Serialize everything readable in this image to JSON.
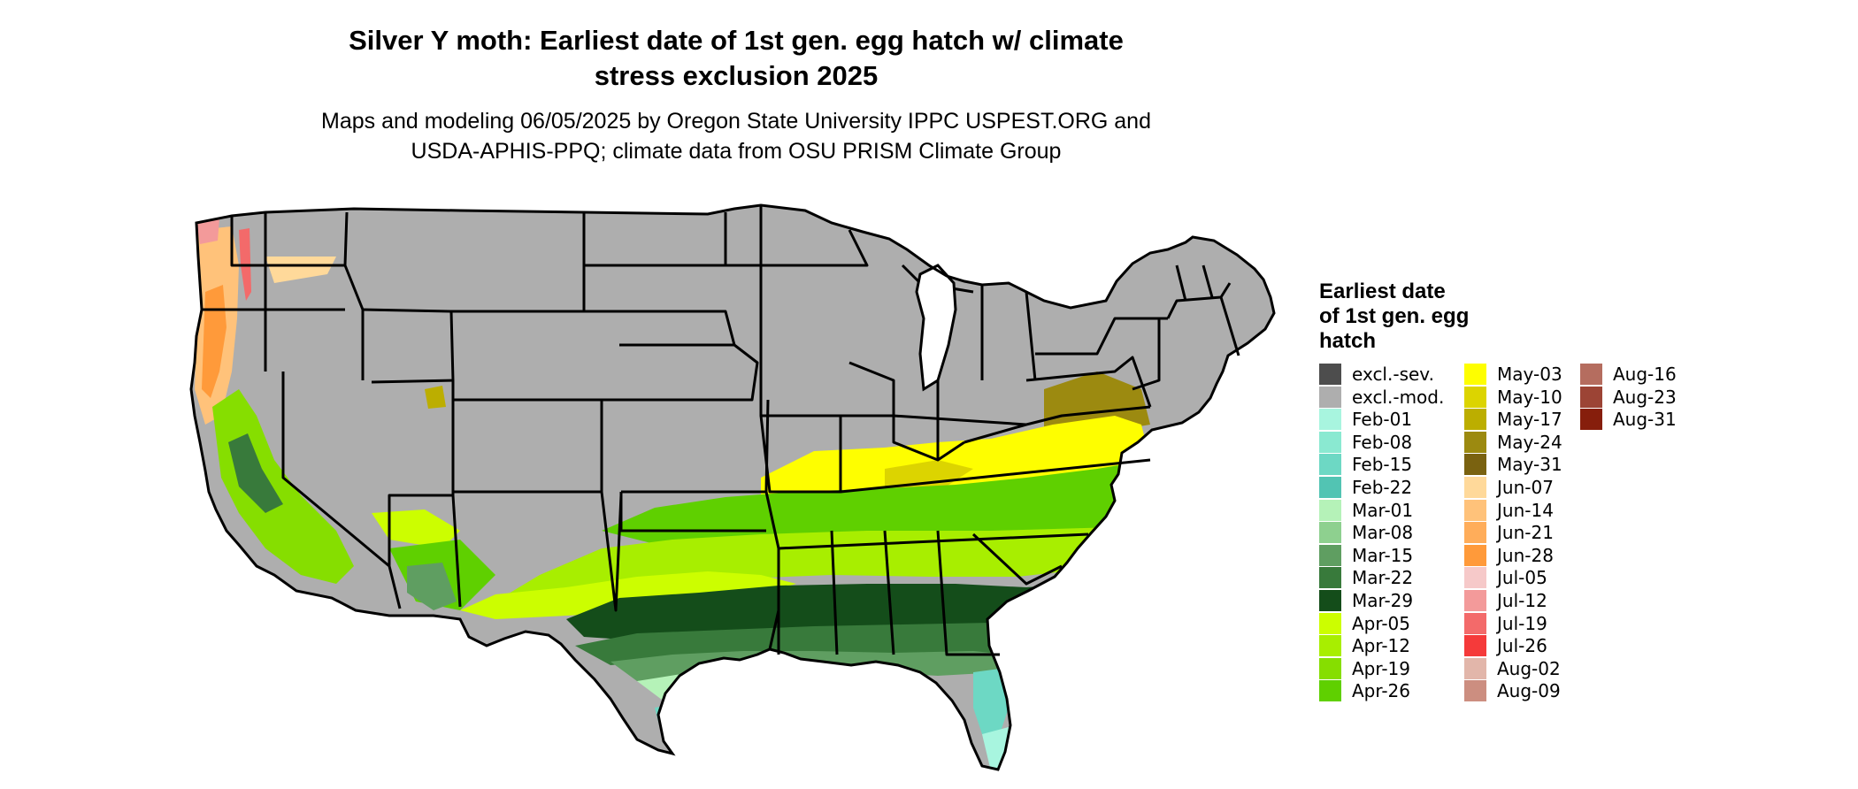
{
  "title": {
    "line1": "Silver Y moth: Earliest date of 1st gen. egg hatch w/ climate",
    "line2": "stress exclusion 2025"
  },
  "subtitle": {
    "line1": "Maps and modeling 06/05/2025 by Oregon State University IPPC USPEST.ORG and",
    "line2": "USDA-APHIS-PPQ; climate data from OSU PRISM Climate Group"
  },
  "legend": {
    "title_lines": [
      "Earliest date",
      "of 1st gen. egg",
      "hatch"
    ],
    "columns": [
      [
        {
          "label": "excl.-sev.",
          "color": "#4d4d4d"
        },
        {
          "label": "excl.-mod.",
          "color": "#aeaeae"
        },
        {
          "label": "Feb-01",
          "color": "#a8f5df"
        },
        {
          "label": "Feb-08",
          "color": "#8ae9d1"
        },
        {
          "label": "Feb-15",
          "color": "#6dd8c4"
        },
        {
          "label": "Feb-22",
          "color": "#52c4b3"
        },
        {
          "label": "Mar-01",
          "color": "#b5f2b8"
        },
        {
          "label": "Mar-08",
          "color": "#8ed08f"
        },
        {
          "label": "Mar-15",
          "color": "#5f9e61"
        },
        {
          "label": "Mar-22",
          "color": "#387a3b"
        },
        {
          "label": "Mar-29",
          "color": "#144d1a"
        },
        {
          "label": "Apr-05",
          "color": "#ccfe00"
        },
        {
          "label": "Apr-12",
          "color": "#a8ee00"
        },
        {
          "label": "Apr-19",
          "color": "#86de00"
        },
        {
          "label": "Apr-26",
          "color": "#5fd000"
        }
      ],
      [
        {
          "label": "May-03",
          "color": "#fefe00"
        },
        {
          "label": "May-10",
          "color": "#dcd400"
        },
        {
          "label": "May-17",
          "color": "#bcae00"
        },
        {
          "label": "May-24",
          "color": "#9c8a10"
        },
        {
          "label": "May-31",
          "color": "#7a6210"
        },
        {
          "label": "Jun-07",
          "color": "#ffd99a"
        },
        {
          "label": "Jun-14",
          "color": "#ffc27a"
        },
        {
          "label": "Jun-21",
          "color": "#ffad5a"
        },
        {
          "label": "Jun-28",
          "color": "#ff9a3a"
        },
        {
          "label": "Jul-05",
          "color": "#f6c9c9"
        },
        {
          "label": "Jul-12",
          "color": "#f39a9a"
        },
        {
          "label": "Jul-19",
          "color": "#f36a6a"
        },
        {
          "label": "Jul-26",
          "color": "#f53a3a"
        },
        {
          "label": "Aug-02",
          "color": "#e2b6aa"
        },
        {
          "label": "Aug-09",
          "color": "#cc8e80"
        }
      ],
      [
        {
          "label": "Aug-16",
          "color": "#b56d5f"
        },
        {
          "label": "Aug-23",
          "color": "#9c4435"
        },
        {
          "label": "Aug-31",
          "color": "#861e0c"
        }
      ]
    ]
  }
}
